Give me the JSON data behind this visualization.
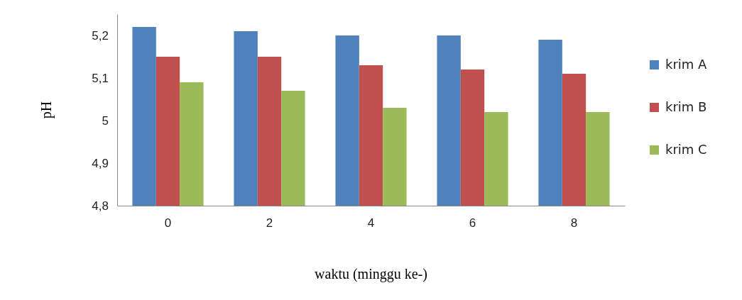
{
  "chart_data": {
    "type": "bar",
    "xlabel": "waktu (minggu ke-)",
    "ylabel": "pH",
    "categories": [
      "0",
      "2",
      "4",
      "6",
      "8"
    ],
    "series": [
      {
        "name": "krim A",
        "color": "#4f81bd",
        "values": [
          5.22,
          5.21,
          5.2,
          5.2,
          5.19
        ]
      },
      {
        "name": "krim B",
        "color": "#c0504d",
        "values": [
          5.15,
          5.15,
          5.13,
          5.12,
          5.11
        ]
      },
      {
        "name": "krim C",
        "color": "#9bbb59",
        "values": [
          5.09,
          5.07,
          5.03,
          5.02,
          5.02
        ]
      }
    ],
    "ylim": [
      4.8,
      5.25
    ],
    "yticks": [
      {
        "value": 4.8,
        "label": "4,8"
      },
      {
        "value": 4.9,
        "label": "4,9"
      },
      {
        "value": 5,
        "label": "5"
      },
      {
        "value": 5.1,
        "label": "5,1"
      },
      {
        "value": 5.2,
        "label": "5,2"
      }
    ],
    "legend": "right"
  }
}
